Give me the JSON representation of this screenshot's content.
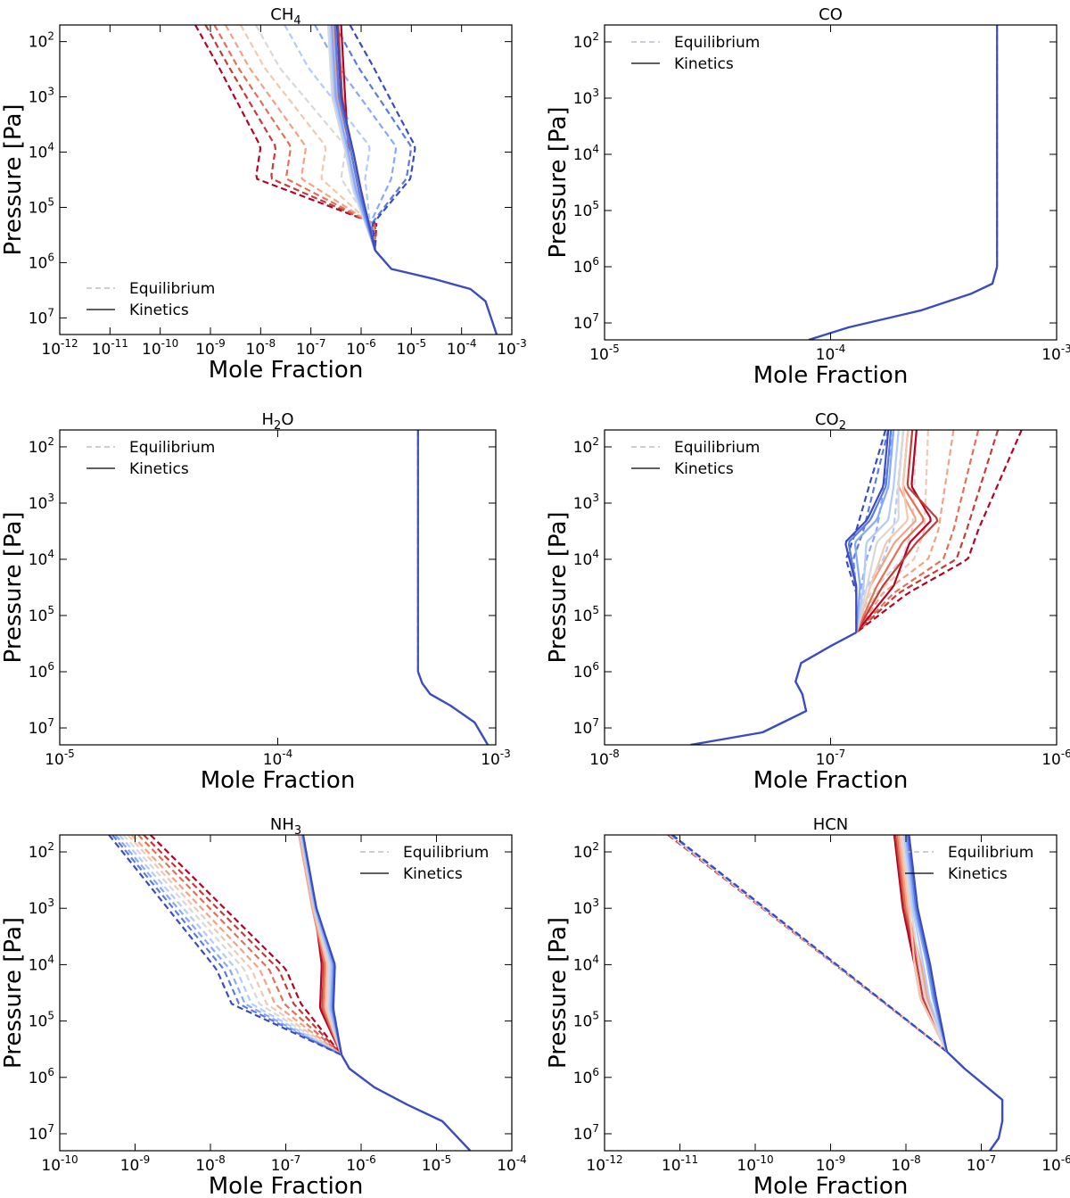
{
  "figure": {
    "ylabel": "Pressure [Pa]",
    "xlabel": "Mole Fraction",
    "legend": {
      "equilibrium": "Equilibrium",
      "kinetics": "Kinetics"
    }
  },
  "palette": [
    "#3a4cc0",
    "#5a7ce2",
    "#86a9fc",
    "#b2cbfb",
    "#d7d8db",
    "#f1c9b1",
    "#f5a283",
    "#e46f56",
    "#c43c38",
    "#b40426"
  ],
  "chart_data": [
    {
      "type": "line",
      "title": "CH4",
      "title_main": "CH",
      "title_sub": "4",
      "xscale": "log",
      "yscale": "log",
      "xlim": [
        1e-12,
        0.001
      ],
      "ylim": [
        20000000,
        50
      ],
      "xticks": [
        {
          "base": "10",
          "exp": "-12"
        },
        {
          "base": "10",
          "exp": "-11"
        },
        {
          "base": "10",
          "exp": "-10"
        },
        {
          "base": "10",
          "exp": "-9"
        },
        {
          "base": "10",
          "exp": "-8"
        },
        {
          "base": "10",
          "exp": "-7"
        },
        {
          "base": "10",
          "exp": "-6"
        },
        {
          "base": "10",
          "exp": "-5"
        },
        {
          "base": "10",
          "exp": "-4"
        },
        {
          "base": "10",
          "exp": "-3"
        }
      ],
      "yticks": [
        {
          "base": "10",
          "exp": "2"
        },
        {
          "base": "10",
          "exp": "3"
        },
        {
          "base": "10",
          "exp": "4"
        },
        {
          "base": "10",
          "exp": "5"
        },
        {
          "base": "10",
          "exp": "6"
        },
        {
          "base": "10",
          "exp": "7"
        }
      ],
      "legend_position": "lower-left",
      "deep_profile": [
        [
          0.0005,
          20000000.0
        ],
        [
          0.0003,
          5000000.0
        ],
        [
          0.00015,
          3000000.0
        ],
        [
          3e-05,
          2000000.0
        ],
        [
          4e-06,
          1300000.0
        ],
        [
          1.9e-06,
          600000.0
        ]
      ],
      "equilibrium": [
        {
          "upper": 5e-10,
          "mid": 1e-08,
          "knee": 2e-06
        },
        {
          "upper": 8e-10,
          "mid": 2e-08,
          "knee": 1.9e-06
        },
        {
          "upper": 1.2e-09,
          "mid": 4e-08,
          "knee": 1.8e-06
        },
        {
          "upper": 2e-09,
          "mid": 8e-08,
          "knee": 1.7e-06
        },
        {
          "upper": 4e-09,
          "mid": 2e-07,
          "knee": 1.6e-06
        },
        {
          "upper": 8e-09,
          "mid": 5e-07,
          "knee": 1.5e-06
        },
        {
          "upper": 3e-08,
          "mid": 1.5e-06,
          "knee": 1.5e-06
        },
        {
          "upper": 1.2e-07,
          "mid": 5e-06,
          "knee": 1.5e-06
        },
        {
          "upper": 3e-07,
          "mid": 1e-05,
          "knee": 1.6e-06
        },
        {
          "upper": 6e-07,
          "mid": 1.2e-05,
          "knee": 1.7e-06
        }
      ],
      "kinetics": [
        {
          "top": 4e-07,
          "mid": 8e-07
        },
        {
          "top": 3.5e-07,
          "mid": 9e-07
        },
        {
          "top": 3e-07,
          "mid": 1e-06
        },
        {
          "top": 2.8e-07,
          "mid": 9e-07
        },
        {
          "top": 2.5e-07,
          "mid": 8e-07
        },
        {
          "top": 2.2e-07,
          "mid": 7e-07
        },
        {
          "top": 2.4e-07,
          "mid": 7.5e-07
        },
        {
          "top": 2.6e-07,
          "mid": 8e-07
        },
        {
          "top": 3e-07,
          "mid": 9e-07
        },
        {
          "top": 3.3e-07,
          "mid": 1e-06
        }
      ]
    },
    {
      "type": "line",
      "title": "CO",
      "title_main": "CO",
      "title_sub": "",
      "xscale": "log",
      "yscale": "log",
      "xlim": [
        1e-05,
        0.001
      ],
      "ylim": [
        20000000,
        50
      ],
      "xticks": [
        {
          "base": "10",
          "exp": "-5"
        },
        {
          "base": "10",
          "exp": "-4"
        },
        {
          "base": "10",
          "exp": "-3"
        }
      ],
      "yticks": [
        {
          "base": "10",
          "exp": "2"
        },
        {
          "base": "10",
          "exp": "3"
        },
        {
          "base": "10",
          "exp": "4"
        },
        {
          "base": "10",
          "exp": "5"
        },
        {
          "base": "10",
          "exp": "6"
        },
        {
          "base": "10",
          "exp": "7"
        }
      ],
      "legend_position": "upper-left",
      "deep_profile": [
        [
          8e-05,
          20000000.0
        ],
        [
          0.00012,
          12000000.0
        ],
        [
          0.00025,
          6000000.0
        ],
        [
          0.00042,
          3000000.0
        ],
        [
          0.00052,
          2000000.0
        ],
        [
          0.000545,
          1000000.0
        ]
      ],
      "constant_value": 0.000545
    },
    {
      "type": "line",
      "title": "H2O",
      "title_main": "H",
      "title_sub": "2",
      "title_tail": "O",
      "xscale": "log",
      "yscale": "log",
      "xlim": [
        1e-05,
        0.001
      ],
      "ylim": [
        20000000,
        50
      ],
      "xticks": [
        {
          "base": "10",
          "exp": "-5"
        },
        {
          "base": "10",
          "exp": "-4"
        },
        {
          "base": "10",
          "exp": "-3"
        }
      ],
      "yticks": [
        {
          "base": "10",
          "exp": "2"
        },
        {
          "base": "10",
          "exp": "3"
        },
        {
          "base": "10",
          "exp": "4"
        },
        {
          "base": "10",
          "exp": "5"
        },
        {
          "base": "10",
          "exp": "6"
        },
        {
          "base": "10",
          "exp": "7"
        }
      ],
      "legend_position": "upper-left",
      "deep_profile": [
        [
          0.00092,
          20000000.0
        ],
        [
          0.0008,
          8000000.0
        ],
        [
          0.00062,
          4000000.0
        ],
        [
          0.0005,
          2500000.0
        ],
        [
          0.00046,
          1600000.0
        ],
        [
          0.00044,
          1000000.0
        ]
      ],
      "constant_value": 0.00044
    },
    {
      "type": "line",
      "title": "CO2",
      "title_main": "CO",
      "title_sub": "2",
      "xscale": "log",
      "yscale": "log",
      "xlim": [
        1e-08,
        1e-06
      ],
      "ylim": [
        20000000,
        50
      ],
      "xticks": [
        {
          "base": "10",
          "exp": "-8"
        },
        {
          "base": "10",
          "exp": "-7"
        },
        {
          "base": "10",
          "exp": "-6"
        }
      ],
      "yticks": [
        {
          "base": "10",
          "exp": "2"
        },
        {
          "base": "10",
          "exp": "3"
        },
        {
          "base": "10",
          "exp": "4"
        },
        {
          "base": "10",
          "exp": "5"
        },
        {
          "base": "10",
          "exp": "6"
        },
        {
          "base": "10",
          "exp": "7"
        }
      ],
      "legend_position": "upper-left",
      "deep_profile": [
        [
          2.4e-08,
          20000000.0
        ],
        [
          5e-08,
          12000000.0
        ],
        [
          7.8e-08,
          5000000.0
        ],
        [
          7.5e-08,
          2500000.0
        ],
        [
          7e-08,
          1500000.0
        ],
        [
          7.4e-08,
          700000.0
        ],
        [
          1e-07,
          350000.0
        ],
        [
          1.3e-07,
          200000.0
        ]
      ],
      "equilibrium": [
        {
          "top": 7e-07,
          "mid": 4.5e-07,
          "low": 2.2e-07
        },
        {
          "top": 5.5e-07,
          "mid": 4e-07,
          "low": 2e-07
        },
        {
          "top": 4.5e-07,
          "mid": 3.5e-07,
          "low": 1.9e-07
        },
        {
          "top": 3.5e-07,
          "mid": 3e-07,
          "low": 1.7e-07
        },
        {
          "top": 2.7e-07,
          "mid": 2.6e-07,
          "low": 1.6e-07
        },
        {
          "top": 2.4e-07,
          "mid": 2.3e-07,
          "low": 1.5e-07
        },
        {
          "top": 2.1e-07,
          "mid": 1.9e-07,
          "low": 1.4e-07
        },
        {
          "top": 1.9e-07,
          "mid": 1.6e-07,
          "low": 1.35e-07
        },
        {
          "top": 1.8e-07,
          "mid": 1.4e-07,
          "low": 1.3e-07
        },
        {
          "top": 1.75e-07,
          "mid": 1.3e-07,
          "low": 1.3e-07
        }
      ],
      "kinetics": [
        {
          "top": 2.4e-07,
          "bump": 2.8e-07,
          "low": 1.9e-07
        },
        {
          "top": 2.3e-07,
          "bump": 3e-07,
          "low": 1.7e-07
        },
        {
          "top": 2.2e-07,
          "bump": 2.6e-07,
          "low": 1.6e-07
        },
        {
          "top": 2.1e-07,
          "bump": 2.4e-07,
          "low": 1.5e-07
        },
        {
          "top": 2.2e-07,
          "bump": 2.2e-07,
          "low": 1.5e-07
        },
        {
          "top": 2.1e-07,
          "bump": 2e-07,
          "low": 1.45e-07
        },
        {
          "top": 2e-07,
          "bump": 1.8e-07,
          "low": 1.4e-07
        },
        {
          "top": 1.9e-07,
          "bump": 1.6e-07,
          "low": 1.35e-07
        },
        {
          "top": 1.85e-07,
          "bump": 1.5e-07,
          "low": 1.3e-07
        },
        {
          "top": 1.8e-07,
          "bump": 1.45e-07,
          "low": 1.3e-07
        }
      ]
    },
    {
      "type": "line",
      "title": "NH3",
      "title_main": "NH",
      "title_sub": "3",
      "xscale": "log",
      "yscale": "log",
      "xlim": [
        1e-10,
        0.0001
      ],
      "ylim": [
        20000000,
        50
      ],
      "xticks": [
        {
          "base": "10",
          "exp": "-10"
        },
        {
          "base": "10",
          "exp": "-9"
        },
        {
          "base": "10",
          "exp": "-8"
        },
        {
          "base": "10",
          "exp": "-7"
        },
        {
          "base": "10",
          "exp": "-6"
        },
        {
          "base": "10",
          "exp": "-5"
        },
        {
          "base": "10",
          "exp": "-4"
        }
      ],
      "yticks": [
        {
          "base": "10",
          "exp": "2"
        },
        {
          "base": "10",
          "exp": "3"
        },
        {
          "base": "10",
          "exp": "4"
        },
        {
          "base": "10",
          "exp": "5"
        },
        {
          "base": "10",
          "exp": "6"
        },
        {
          "base": "10",
          "exp": "7"
        }
      ],
      "legend_position": "upper-right",
      "deep_profile": [
        [
          2.8e-05,
          20000000.0
        ],
        [
          1.2e-05,
          6000000.0
        ],
        [
          4e-06,
          3000000.0
        ],
        [
          1.5e-06,
          1500000.0
        ],
        [
          7e-07,
          700000.0
        ],
        [
          5.5e-07,
          400000.0
        ]
      ],
      "equilibrium": [
        {
          "upper": 1.6e-09,
          "mid": 1e-07
        },
        {
          "upper": 1.3e-09,
          "mid": 8e-08
        },
        {
          "upper": 1.1e-09,
          "mid": 6e-08
        },
        {
          "upper": 9e-10,
          "mid": 4.5e-08
        },
        {
          "upper": 8e-10,
          "mid": 3.5e-08
        },
        {
          "upper": 7e-10,
          "mid": 2.8e-08
        },
        {
          "upper": 6.2e-10,
          "mid": 2.2e-08
        },
        {
          "upper": 5.5e-10,
          "mid": 1.8e-08
        },
        {
          "upper": 5e-10,
          "mid": 1.5e-08
        },
        {
          "upper": 4.5e-10,
          "mid": 1.2e-08
        }
      ],
      "kinetics": [
        {
          "top": 1.6e-07,
          "mid": 3e-07
        },
        {
          "top": 1.55e-07,
          "mid": 3.2e-07
        },
        {
          "top": 1.5e-07,
          "mid": 3.3e-07
        },
        {
          "top": 1.5e-07,
          "mid": 3.5e-07
        },
        {
          "top": 1.55e-07,
          "mid": 3.6e-07
        },
        {
          "top": 1.6e-07,
          "mid": 3.8e-07
        },
        {
          "top": 1.6e-07,
          "mid": 4e-07
        },
        {
          "top": 1.65e-07,
          "mid": 4.2e-07
        },
        {
          "top": 1.7e-07,
          "mid": 4.4e-07
        },
        {
          "top": 1.7e-07,
          "mid": 4.5e-07
        }
      ]
    },
    {
      "type": "line",
      "title": "HCN",
      "title_main": "HCN",
      "title_sub": "",
      "xscale": "log",
      "yscale": "log",
      "xlim": [
        1e-12,
        1e-06
      ],
      "ylim": [
        20000000,
        50
      ],
      "xticks": [
        {
          "base": "10",
          "exp": "-12"
        },
        {
          "base": "10",
          "exp": "-11"
        },
        {
          "base": "10",
          "exp": "-10"
        },
        {
          "base": "10",
          "exp": "-9"
        },
        {
          "base": "10",
          "exp": "-8"
        },
        {
          "base": "10",
          "exp": "-7"
        },
        {
          "base": "10",
          "exp": "-6"
        }
      ],
      "yticks": [
        {
          "base": "10",
          "exp": "2"
        },
        {
          "base": "10",
          "exp": "3"
        },
        {
          "base": "10",
          "exp": "4"
        },
        {
          "base": "10",
          "exp": "5"
        },
        {
          "base": "10",
          "exp": "6"
        },
        {
          "base": "10",
          "exp": "7"
        }
      ],
      "legend_position": "upper-right",
      "deep_profile": [
        [
          1.3e-07,
          20000000.0
        ],
        [
          1.7e-07,
          12000000.0
        ],
        [
          1.9e-07,
          6000000.0
        ],
        [
          1.9e-07,
          2500000.0
        ],
        [
          1.2e-07,
          1500000.0
        ],
        [
          6e-08,
          700000.0
        ],
        [
          3.5e-08,
          350000.0
        ]
      ],
      "equilibrium_line": [
        [
          7e-12,
          50
        ],
        [
          3.5e-08,
          350000.0
        ]
      ],
      "kinetics": [
        {
          "top": 7e-09,
          "mid": 1.3e-08
        },
        {
          "top": 7.3e-09,
          "mid": 1.4e-08
        },
        {
          "top": 7.6e-09,
          "mid": 1.5e-08
        },
        {
          "top": 8e-09,
          "mid": 1.6e-08
        },
        {
          "top": 8.5e-09,
          "mid": 1.3e-08
        },
        {
          "top": 9e-09,
          "mid": 1.5e-08
        },
        {
          "top": 9.5e-09,
          "mid": 1.7e-08
        },
        {
          "top": 1e-08,
          "mid": 1.9e-08
        },
        {
          "top": 1.05e-08,
          "mid": 2e-08
        },
        {
          "top": 1.1e-08,
          "mid": 2.1e-08
        }
      ]
    }
  ]
}
